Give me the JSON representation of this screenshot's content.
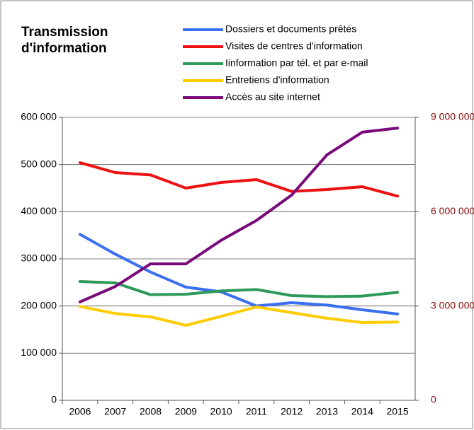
{
  "chart_data": {
    "type": "line",
    "title": "Transmission d'information",
    "categories": [
      "2006",
      "2007",
      "2008",
      "2009",
      "2010",
      "2011",
      "2012",
      "2013",
      "2014",
      "2015"
    ],
    "series": [
      {
        "name": "Dossiers et documents prêtés",
        "color": "#3a6ff0",
        "values": [
          352000,
          310000,
          272000,
          240000,
          230000,
          200000,
          207000,
          202000,
          192000,
          183000
        ]
      },
      {
        "name": "Visites de centres d'information",
        "color": "#ee1111",
        "values": [
          504000,
          483000,
          478000,
          450000,
          462000,
          468000,
          443000,
          447000,
          453000,
          433000
        ]
      },
      {
        "name": "Iinformation par tél. et par e-mail",
        "color": "#2e9a5a",
        "values": [
          252000,
          249000,
          224000,
          225000,
          232000,
          235000,
          222000,
          220000,
          221000,
          229000
        ]
      },
      {
        "name": "Entretiens d'information",
        "color": "#ffcc00",
        "values": [
          199000,
          184000,
          177000,
          159000,
          178000,
          198000,
          186000,
          174000,
          165000,
          166000
        ]
      },
      {
        "name": "Accès au site internet",
        "color": "#7a0a7a",
        "axis": "y2",
        "values": [
          3130000,
          3620000,
          4340000,
          4340000,
          5090000,
          5720000,
          6530000,
          7810000,
          8530000,
          8660000
        ]
      }
    ],
    "ylim": [
      0,
      600000
    ],
    "yticks": [
      0,
      {
        "value": 100000,
        "label": "100 000"
      },
      {
        "value": 200000,
        "label": "200 000"
      },
      {
        "value": 300000,
        "label": "300 000"
      },
      {
        "value": 400000,
        "label": "400 000"
      },
      {
        "value": 500000,
        "label": "500 000"
      },
      {
        "value": 600000,
        "label": "600 000"
      }
    ],
    "y2lim": [
      0,
      9000000
    ],
    "y2ticks": [
      0,
      {
        "value": 3000000,
        "label": "3 000 000"
      },
      {
        "value": 6000000,
        "label": "6 000 000"
      },
      {
        "value": 9000000,
        "label": "9 000 000"
      }
    ],
    "y2color": "#8b0a0a",
    "grid": true
  }
}
